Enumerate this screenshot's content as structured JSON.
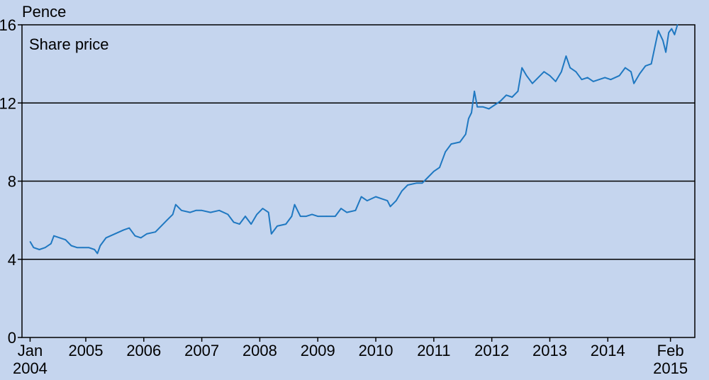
{
  "chart_data": {
    "type": "line",
    "title": "",
    "unit_label": "Pence",
    "series_label": "Share price",
    "ylim": [
      0,
      16
    ],
    "y_ticks": [
      0,
      4,
      8,
      12,
      16
    ],
    "gridlines_y": [
      4,
      8,
      12
    ],
    "x_ticks": [
      {
        "label": "Jan",
        "label2": "2004",
        "x": 2004.04
      },
      {
        "label": "2005",
        "x": 2005.0
      },
      {
        "label": "2006",
        "x": 2006.0
      },
      {
        "label": "2007",
        "x": 2007.0
      },
      {
        "label": "2008",
        "x": 2008.0
      },
      {
        "label": "2009",
        "x": 2009.0
      },
      {
        "label": "2010",
        "x": 2010.0
      },
      {
        "label": "2011",
        "x": 2011.0
      },
      {
        "label": "2012",
        "x": 2012.0
      },
      {
        "label": "2013",
        "x": 2013.0
      },
      {
        "label": "2014",
        "x": 2014.0
      },
      {
        "label": "Feb",
        "label2": "2015",
        "x": 2015.08
      }
    ],
    "xlim": [
      2003.9,
      2015.5
    ],
    "series": [
      {
        "name": "Share price",
        "color": "#1f78c1",
        "points": [
          [
            2004.04,
            4.9
          ],
          [
            2004.1,
            4.6
          ],
          [
            2004.2,
            4.5
          ],
          [
            2004.3,
            4.6
          ],
          [
            2004.4,
            4.8
          ],
          [
            2004.45,
            5.2
          ],
          [
            2004.55,
            5.1
          ],
          [
            2004.65,
            5.0
          ],
          [
            2004.75,
            4.7
          ],
          [
            2004.85,
            4.6
          ],
          [
            2004.95,
            4.6
          ],
          [
            2005.05,
            4.6
          ],
          [
            2005.15,
            4.5
          ],
          [
            2005.2,
            4.3
          ],
          [
            2005.25,
            4.7
          ],
          [
            2005.35,
            5.1
          ],
          [
            2005.5,
            5.3
          ],
          [
            2005.65,
            5.5
          ],
          [
            2005.75,
            5.6
          ],
          [
            2005.85,
            5.2
          ],
          [
            2005.95,
            5.1
          ],
          [
            2006.05,
            5.3
          ],
          [
            2006.2,
            5.4
          ],
          [
            2006.3,
            5.7
          ],
          [
            2006.4,
            6.0
          ],
          [
            2006.5,
            6.3
          ],
          [
            2006.55,
            6.8
          ],
          [
            2006.65,
            6.5
          ],
          [
            2006.8,
            6.4
          ],
          [
            2006.9,
            6.5
          ],
          [
            2007.0,
            6.5
          ],
          [
            2007.15,
            6.4
          ],
          [
            2007.3,
            6.5
          ],
          [
            2007.45,
            6.3
          ],
          [
            2007.55,
            5.9
          ],
          [
            2007.65,
            5.8
          ],
          [
            2007.75,
            6.2
          ],
          [
            2007.85,
            5.8
          ],
          [
            2007.95,
            6.3
          ],
          [
            2008.05,
            6.6
          ],
          [
            2008.15,
            6.4
          ],
          [
            2008.2,
            5.3
          ],
          [
            2008.3,
            5.7
          ],
          [
            2008.45,
            5.8
          ],
          [
            2008.55,
            6.2
          ],
          [
            2008.6,
            6.8
          ],
          [
            2008.7,
            6.2
          ],
          [
            2008.8,
            6.2
          ],
          [
            2008.9,
            6.3
          ],
          [
            2009.0,
            6.2
          ],
          [
            2009.15,
            6.2
          ],
          [
            2009.3,
            6.2
          ],
          [
            2009.4,
            6.6
          ],
          [
            2009.5,
            6.4
          ],
          [
            2009.65,
            6.5
          ],
          [
            2009.75,
            7.2
          ],
          [
            2009.85,
            7.0
          ],
          [
            2010.0,
            7.2
          ],
          [
            2010.1,
            7.1
          ],
          [
            2010.2,
            7.0
          ],
          [
            2010.25,
            6.7
          ],
          [
            2010.35,
            7.0
          ],
          [
            2010.45,
            7.5
          ],
          [
            2010.55,
            7.8
          ],
          [
            2010.7,
            7.9
          ],
          [
            2010.8,
            7.9
          ],
          [
            2010.9,
            8.2
          ],
          [
            2011.0,
            8.5
          ],
          [
            2011.1,
            8.7
          ],
          [
            2011.2,
            9.5
          ],
          [
            2011.3,
            9.9
          ],
          [
            2011.45,
            10.0
          ],
          [
            2011.55,
            10.4
          ],
          [
            2011.6,
            11.2
          ],
          [
            2011.65,
            11.5
          ],
          [
            2011.7,
            12.6
          ],
          [
            2011.75,
            11.8
          ],
          [
            2011.85,
            11.8
          ],
          [
            2011.95,
            11.7
          ],
          [
            2012.05,
            11.9
          ],
          [
            2012.15,
            12.1
          ],
          [
            2012.25,
            12.4
          ],
          [
            2012.35,
            12.3
          ],
          [
            2012.45,
            12.6
          ],
          [
            2012.52,
            13.8
          ],
          [
            2012.6,
            13.4
          ],
          [
            2012.7,
            13.0
          ],
          [
            2012.8,
            13.3
          ],
          [
            2012.9,
            13.6
          ],
          [
            2013.0,
            13.4
          ],
          [
            2013.1,
            13.1
          ],
          [
            2013.2,
            13.6
          ],
          [
            2013.28,
            14.4
          ],
          [
            2013.35,
            13.8
          ],
          [
            2013.45,
            13.6
          ],
          [
            2013.55,
            13.2
          ],
          [
            2013.65,
            13.3
          ],
          [
            2013.75,
            13.1
          ],
          [
            2013.85,
            13.2
          ],
          [
            2013.95,
            13.3
          ],
          [
            2014.05,
            13.2
          ],
          [
            2014.2,
            13.4
          ],
          [
            2014.3,
            13.8
          ],
          [
            2014.4,
            13.6
          ],
          [
            2014.45,
            13.0
          ],
          [
            2014.55,
            13.5
          ],
          [
            2014.65,
            13.9
          ],
          [
            2014.75,
            14.0
          ],
          [
            2014.82,
            15.0
          ],
          [
            2014.87,
            15.7
          ],
          [
            2014.95,
            15.2
          ],
          [
            2015.0,
            14.6
          ],
          [
            2015.05,
            15.6
          ],
          [
            2015.1,
            15.8
          ],
          [
            2015.15,
            15.5
          ],
          [
            2015.2,
            16.0
          ]
        ]
      }
    ]
  }
}
